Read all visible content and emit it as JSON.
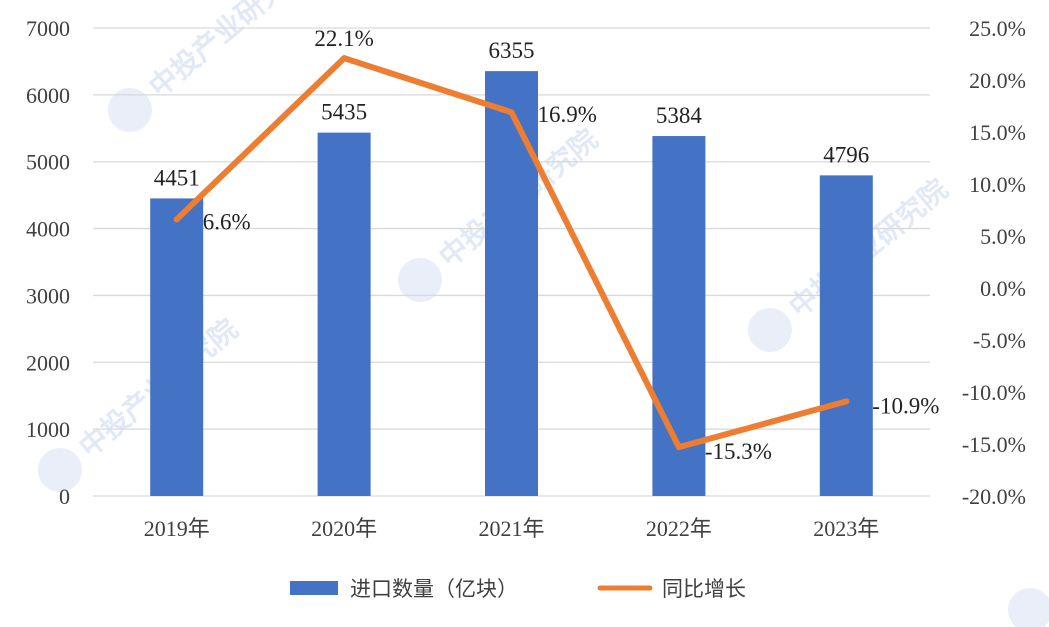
{
  "chart_data": {
    "type": "bar+line",
    "categories": [
      "2019年",
      "2020年",
      "2021年",
      "2022年",
      "2023年"
    ],
    "bar_series": {
      "name": "进口数量（亿块）",
      "values": [
        4451,
        5435,
        6355,
        5384,
        4796
      ],
      "labels": [
        "4451",
        "5435",
        "6355",
        "5384",
        "4796"
      ],
      "color": "#4472c4"
    },
    "line_series": {
      "name": "同比增长",
      "values": [
        6.6,
        22.1,
        16.9,
        -15.3,
        -10.9
      ],
      "labels": [
        "6.6%",
        "22.1%",
        "16.9%",
        "-15.3%",
        "-10.9%"
      ],
      "color": "#ed7d31"
    },
    "y_left": {
      "min": 0,
      "max": 7000,
      "step": 1000,
      "ticks": [
        "0",
        "1000",
        "2000",
        "3000",
        "4000",
        "5000",
        "6000",
        "7000"
      ]
    },
    "y_right": {
      "min": -20,
      "max": 25,
      "step": 5,
      "ticks": [
        "-20.0%",
        "-15.0%",
        "-10.0%",
        "-5.0%",
        "0.0%",
        "5.0%",
        "10.0%",
        "15.0%",
        "20.0%",
        "25.0%"
      ]
    },
    "grid": true,
    "legend_position": "bottom",
    "watermark": "中投产业研究院"
  }
}
